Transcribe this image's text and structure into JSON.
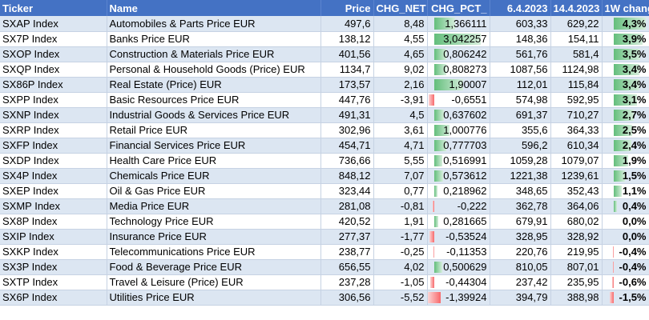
{
  "headers": {
    "ticker": "Ticker",
    "name": "Name",
    "price": "Price",
    "chg_net": "CHG_NET",
    "chg_pct": "CHG_PCT_",
    "d1": "6.4.2023",
    "d2": "14.4.2023",
    "wk": "1W change"
  },
  "rows": [
    {
      "ticker": "SXAP Index",
      "name": "Automobiles & Parts Price EUR",
      "price": "497,6",
      "chg_net": "8,48",
      "chg_pct": "1,366111",
      "pct_val": 1.366111,
      "d1": "603,33",
      "d2": "629,22",
      "wk": "4,3%",
      "wk_val": 4.3
    },
    {
      "ticker": "SX7P Index",
      "name": "Banks Price EUR",
      "price": "138,12",
      "chg_net": "4,55",
      "chg_pct": "3,042257",
      "pct_val": 3.042257,
      "d1": "148,36",
      "d2": "154,11",
      "wk": "3,9%",
      "wk_val": 3.9
    },
    {
      "ticker": "SXOP Index",
      "name": "Construction & Materials Price EUR",
      "price": "401,56",
      "chg_net": "4,65",
      "chg_pct": "0,806242",
      "pct_val": 0.806242,
      "d1": "561,76",
      "d2": "581,4",
      "wk": "3,5%",
      "wk_val": 3.5
    },
    {
      "ticker": "SXQP Index",
      "name": "Personal & Household Goods (Price) EUR",
      "price": "1134,7",
      "chg_net": "9,02",
      "chg_pct": "0,808273",
      "pct_val": 0.808273,
      "d1": "1087,56",
      "d2": "1124,98",
      "wk": "3,4%",
      "wk_val": 3.4
    },
    {
      "ticker": "SX86P Index",
      "name": "Real Estate (Price) EUR",
      "price": "173,57",
      "chg_net": "2,16",
      "chg_pct": "1,90007",
      "pct_val": 1.90007,
      "d1": "112,01",
      "d2": "115,84",
      "wk": "3,4%",
      "wk_val": 3.4
    },
    {
      "ticker": "SXPP Index",
      "name": "Basic Resources Price EUR",
      "price": "447,76",
      "chg_net": "-3,91",
      "chg_pct": "-0,6551",
      "pct_val": -0.6551,
      "d1": "574,98",
      "d2": "592,95",
      "wk": "3,1%",
      "wk_val": 3.1
    },
    {
      "ticker": "SXNP Index",
      "name": "Industrial Goods & Services Price EUR",
      "price": "491,31",
      "chg_net": "4,5",
      "chg_pct": "0,637602",
      "pct_val": 0.637602,
      "d1": "691,37",
      "d2": "710,27",
      "wk": "2,7%",
      "wk_val": 2.7
    },
    {
      "ticker": "SXRP Index",
      "name": "Retail Price EUR",
      "price": "302,96",
      "chg_net": "3,61",
      "chg_pct": "1,000776",
      "pct_val": 1.000776,
      "d1": "355,6",
      "d2": "364,33",
      "wk": "2,5%",
      "wk_val": 2.5
    },
    {
      "ticker": "SXFP Index",
      "name": "Financial Services Price EUR",
      "price": "454,71",
      "chg_net": "4,71",
      "chg_pct": "0,777703",
      "pct_val": 0.777703,
      "d1": "596,2",
      "d2": "610,34",
      "wk": "2,4%",
      "wk_val": 2.4
    },
    {
      "ticker": "SXDP Index",
      "name": "Health Care Price EUR",
      "price": "736,66",
      "chg_net": "5,55",
      "chg_pct": "0,516991",
      "pct_val": 0.516991,
      "d1": "1059,28",
      "d2": "1079,07",
      "wk": "1,9%",
      "wk_val": 1.9
    },
    {
      "ticker": "SX4P Index",
      "name": "Chemicals Price EUR",
      "price": "848,12",
      "chg_net": "7,07",
      "chg_pct": "0,573612",
      "pct_val": 0.573612,
      "d1": "1221,38",
      "d2": "1239,61",
      "wk": "1,5%",
      "wk_val": 1.5
    },
    {
      "ticker": "SXEP Index",
      "name": "Oil & Gas Price EUR",
      "price": "323,44",
      "chg_net": "0,77",
      "chg_pct": "0,218962",
      "pct_val": 0.218962,
      "d1": "348,65",
      "d2": "352,43",
      "wk": "1,1%",
      "wk_val": 1.1
    },
    {
      "ticker": "SXMP Index",
      "name": "Media Price EUR",
      "price": "281,08",
      "chg_net": "-0,81",
      "chg_pct": "-0,222",
      "pct_val": -0.222,
      "d1": "362,78",
      "d2": "364,06",
      "wk": "0,4%",
      "wk_val": 0.4
    },
    {
      "ticker": "SX8P Index",
      "name": "Technology Price EUR",
      "price": "420,52",
      "chg_net": "1,91",
      "chg_pct": "0,281665",
      "pct_val": 0.281665,
      "d1": "679,91",
      "d2": "680,02",
      "wk": "0,0%",
      "wk_val": 0.0
    },
    {
      "ticker": "SXIP Index",
      "name": "Insurance Price EUR",
      "price": "277,37",
      "chg_net": "-1,77",
      "chg_pct": "-0,53524",
      "pct_val": -0.53524,
      "d1": "328,95",
      "d2": "328,92",
      "wk": "0,0%",
      "wk_val": 0.0
    },
    {
      "ticker": "SXKP Index",
      "name": "Telecommunications Price EUR",
      "price": "238,77",
      "chg_net": "-0,25",
      "chg_pct": "-0,11353",
      "pct_val": -0.11353,
      "d1": "220,76",
      "d2": "219,95",
      "wk": "-0,4%",
      "wk_val": -0.4
    },
    {
      "ticker": "SX3P Index",
      "name": "Food & Beverage Price EUR",
      "price": "656,55",
      "chg_net": "4,02",
      "chg_pct": "0,500629",
      "pct_val": 0.500629,
      "d1": "810,05",
      "d2": "807,01",
      "wk": "-0,4%",
      "wk_val": -0.4
    },
    {
      "ticker": "SXTP Index",
      "name": "Travel & Leisure (Price) EUR",
      "price": "237,28",
      "chg_net": "-1,05",
      "chg_pct": "-0,44304",
      "pct_val": -0.44304,
      "d1": "237,42",
      "d2": "235,95",
      "wk": "-0,6%",
      "wk_val": -0.6
    },
    {
      "ticker": "SX6P Index",
      "name": "Utilities Price EUR",
      "price": "306,56",
      "chg_net": "-5,52",
      "chg_pct": "-1,39924",
      "pct_val": -1.39924,
      "d1": "394,79",
      "d2": "388,98",
      "wk": "-1,5%",
      "wk_val": -1.5
    }
  ],
  "colors": {
    "header_bg": "#4472c4",
    "band": "#dce6f2",
    "pos_bar": "#63be7b",
    "neg_bar": "#f8696b"
  }
}
